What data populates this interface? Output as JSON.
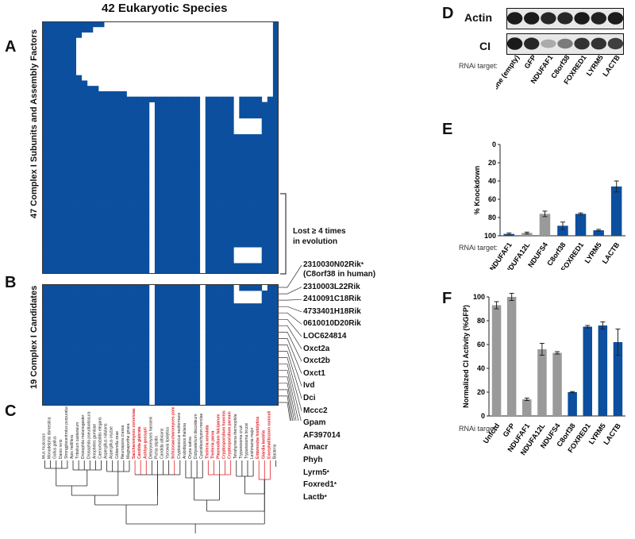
{
  "colors": {
    "blue": "#0b4f9e",
    "gray": "#9a9a9a",
    "red": "#e31e24",
    "black": "#111111"
  },
  "header": {
    "title": "42 Eukaryotic Species"
  },
  "panel_letters": {
    "a": "A",
    "b": "B",
    "c": "C",
    "d": "D",
    "e": "E",
    "f": "F"
  },
  "panel_a": {
    "ylabel": "47 Complex I Subunits  and Assembly Factors",
    "bracket_label_1": "Lost ≥ 4 times",
    "bracket_label_2": "in evolution",
    "rows": [
      "111111111110000000000000000000000000000001",
      "111111111000000000000000000000000000000001",
      "111111100000000000000000000000000000000001",
      "111111000000000000000000000000000000000001",
      "111111000000000000000000000000000000000001",
      "111111000000000000000000000000000000000001",
      "111111000000000000000000000000000000000001",
      "111111000000000000000000000000000000000001",
      "111111000000000000000000000000000000000001",
      "111111000000000000000000000000000000000001",
      "111111100000000000000000000000000000000001",
      "111111110000000000000000000000000000000001",
      "111111111100000000000000000000000000000001",
      "111111111111111000000000000000000000000001",
      "111111111111111111111111111101111101111011",
      "111111111111111111101111111101111101111111",
      "111111111111111111101111111101111101111111",
      "111111111111111111101111111101111101111111",
      "111111111111111111101111111101111100000111",
      "111111111111111111101111111101111100000111",
      "111111111111111111101111111101111100000111",
      "111111111111111111101111111101111111111111",
      "111111111111111111101111111101111111111111",
      "111111111111111111101111111101111111111111",
      "111111111111111111101111111101111111111111",
      "111111111111111111101111111101111111111111",
      "111111111111111111101111111101111111111111",
      "111111111111111111101111111101111111111111",
      "111111111111111111101111111101111111111111",
      "111111111111111111101111111101111111111111",
      "111111111111111111101111111101111111111111",
      "111111111111111111101111111101111111111111",
      "111111111111111111101111111101111111111111",
      "111111111111111111101111111101111111111111",
      "111111111111111111101111111101111111111111",
      "111111111111111111101111111101111111111111",
      "111111111111111111101111111101111111111111",
      "111111111111111111101111111101111111111111",
      "111111111111111111101111111101111111111111",
      "111111111111111111101111111101111111111111",
      "111111111111111111101111111101111111111111",
      "111111111111111111101111111101111111111111",
      "111111111111111111101111111101111100000111",
      "111111111111111111101111111101111100000111",
      "111111111111111111101111111101111100000111",
      "111111111111111111101111111101111111111111",
      "111111111111111111101111111101111111111111"
    ]
  },
  "panel_b": {
    "ylabel": "19 Complex I Candidates",
    "genes": [
      {
        "name": "2310030N02Rik",
        "star": "*"
      },
      {
        "name": "(C8orf38 in human)",
        "star": ""
      },
      {
        "name": "2310003L22Rik",
        "star": ""
      },
      {
        "name": "2410091C18Rik",
        "star": ""
      },
      {
        "name": "4733401H18Rik",
        "star": ""
      },
      {
        "name": "0610010D20Rik",
        "star": ""
      },
      {
        "name": "LOC624814",
        "star": ""
      },
      {
        "name": "Oxct2a",
        "star": ""
      },
      {
        "name": "Oxct2b",
        "star": ""
      },
      {
        "name": "Oxct1",
        "star": ""
      },
      {
        "name": "Ivd",
        "star": ""
      },
      {
        "name": "Dci",
        "star": ""
      },
      {
        "name": "Mccc2",
        "star": ""
      },
      {
        "name": "Gpam",
        "star": ""
      },
      {
        "name": "AF397014",
        "star": ""
      },
      {
        "name": "Amacr",
        "star": ""
      },
      {
        "name": "Phyh",
        "star": ""
      },
      {
        "name": "Lyrm5",
        "star": "*"
      },
      {
        "name": "Foxred1",
        "star": "*"
      },
      {
        "name": "Lactb",
        "star": "*"
      }
    ],
    "rows": [
      "111111111111111111101111111101111101111011",
      "111111111111111111101111111101111100000111",
      "111111111111111111101111111101111100000111",
      "111111111111111111101111111101111111111111",
      "111111111111111111101111111101111111111111",
      "111111111111111111101111111101111111111111",
      "111111111111111111101111111101111111111111",
      "111111111111111111101111111101111111111111",
      "111111111111111111101111111101111111111111",
      "111111111111111111101111111101111111111111",
      "111111111111111111101111111101111111111111",
      "111111111111111111101111111101111111111111",
      "111111111111111111101111111101111111111111",
      "111111111111111111101111111101111111111111",
      "111111111111111111101111111101111111111111",
      "111111111111111111101111111101111111111111",
      "111111111111111111101111111101111111111111",
      "111111111111111111101111111101111111111111",
      "111111111111111111101111111101111111111111"
    ]
  },
  "panel_c": {
    "species": [
      {
        "name": "Mus musculus",
        "red": false
      },
      {
        "name": "Monodelphis domestica",
        "red": false
      },
      {
        "name": "Gallus gallus",
        "red": false
      },
      {
        "name": "Danio rerio",
        "red": false
      },
      {
        "name": "Strongylocentrotus purpuratus",
        "red": false
      },
      {
        "name": "Apis mellifera",
        "red": false
      },
      {
        "name": "Tribolium castaneum",
        "red": false
      },
      {
        "name": "Drosophila melanogaster",
        "red": false
      },
      {
        "name": "Drosophila pseudoobscura",
        "red": false
      },
      {
        "name": "Anopheles gambiae",
        "red": false
      },
      {
        "name": "Caenorhabditis elegans",
        "red": false
      },
      {
        "name": "Aspergillus nidulans",
        "red": false
      },
      {
        "name": "Aspergillus oryzae",
        "red": false
      },
      {
        "name": "Gibberella zeae",
        "red": false
      },
      {
        "name": "Neurospora crassa",
        "red": false
      },
      {
        "name": "Magnaporthe grisea",
        "red": false
      },
      {
        "name": "Saccharomyces cerevisiae",
        "red": true
      },
      {
        "name": "Candida glabrata",
        "red": true
      },
      {
        "name": "Ashbya gossypii",
        "red": true
      },
      {
        "name": "Debaryomyces hansenii",
        "red": false
      },
      {
        "name": "Pichia stipitis",
        "red": false
      },
      {
        "name": "Candida albicans",
        "red": false
      },
      {
        "name": "Yarrowia lipolytica",
        "red": false
      },
      {
        "name": "Schizosaccharomyces pombe",
        "red": true
      },
      {
        "name": "Cryptococcus neoformans",
        "red": false
      },
      {
        "name": "Arabidopsis thaliana",
        "red": false
      },
      {
        "name": "Oryza sativa",
        "red": false
      },
      {
        "name": "Dictyostelium discoideum",
        "red": false
      },
      {
        "name": "Cyanidioschyzon merolae",
        "red": false
      },
      {
        "name": "Theileria annulata",
        "red": true
      },
      {
        "name": "Theileria parva",
        "red": true
      },
      {
        "name": "Plasmodium falciparum",
        "red": true
      },
      {
        "name": "Cryptosporidium hominis",
        "red": true
      },
      {
        "name": "Cryptosporidium parvum",
        "red": true
      },
      {
        "name": "Tetrahymena thermophila",
        "red": false
      },
      {
        "name": "Trypanosoma cruzi",
        "red": false
      },
      {
        "name": "Trypanosoma brucei",
        "red": false
      },
      {
        "name": "Leishmania major",
        "red": false
      },
      {
        "name": "Entamoeba histolytica",
        "red": true
      },
      {
        "name": "Giardia lamblia",
        "red": true
      },
      {
        "name": "Encephalitozoon cuniculi",
        "red": true
      },
      {
        "name": "Bacteria",
        "red": false
      }
    ]
  },
  "panel_d": {
    "row_labels": [
      "Actin",
      "CI"
    ],
    "rnai_label": "RNAi target:",
    "lanes": [
      "None (empty)",
      "GFP",
      "NDUFAF1",
      "C8orf38",
      "FOXRED1",
      "LYRM5",
      "LACTB"
    ],
    "actin_intensity": [
      0.95,
      0.95,
      0.9,
      0.9,
      0.95,
      0.92,
      0.95
    ],
    "ci_intensity": [
      0.95,
      0.9,
      0.35,
      0.55,
      0.85,
      0.85,
      0.8
    ]
  },
  "panel_e": {
    "chart_data": {
      "type": "bar",
      "ylabel": "% Knockdown",
      "ylim": [
        100,
        0
      ],
      "yticks": [
        0,
        20,
        40,
        60,
        80,
        100
      ],
      "rnai_label": "RNAi target:",
      "categories": [
        "NDUFAF1",
        "NDUFA12L",
        "NDUFS4",
        "C8orf38",
        "FOXRED1",
        "LYRM5",
        "LACTB"
      ],
      "values": [
        98,
        97,
        76,
        89,
        76,
        94,
        46
      ],
      "errors": [
        1,
        1,
        3,
        4,
        1,
        1,
        6
      ],
      "colors": [
        "blue",
        "gray",
        "gray",
        "blue",
        "blue",
        "blue",
        "blue"
      ]
    }
  },
  "panel_f": {
    "chart_data": {
      "type": "bar",
      "ylabel": "Normalized CI Activity (%GFP)",
      "ylim": [
        0,
        100
      ],
      "yticks": [
        0,
        20,
        40,
        60,
        80,
        100
      ],
      "rnai_label": "RNAi target:",
      "categories": [
        "Unfctd",
        "GFP",
        "NDUFAF1",
        "NDUFA12L",
        "NDUFS4",
        "C8orf38",
        "FOXRED1",
        "LYRM5",
        "LACTB"
      ],
      "values": [
        93,
        100,
        14,
        56,
        53,
        20,
        75,
        76,
        62
      ],
      "errors": [
        3,
        3,
        1,
        5,
        1,
        0.5,
        1,
        3,
        11
      ],
      "colors": [
        "gray",
        "gray",
        "gray",
        "gray",
        "gray",
        "blue",
        "blue",
        "blue",
        "blue"
      ]
    }
  }
}
